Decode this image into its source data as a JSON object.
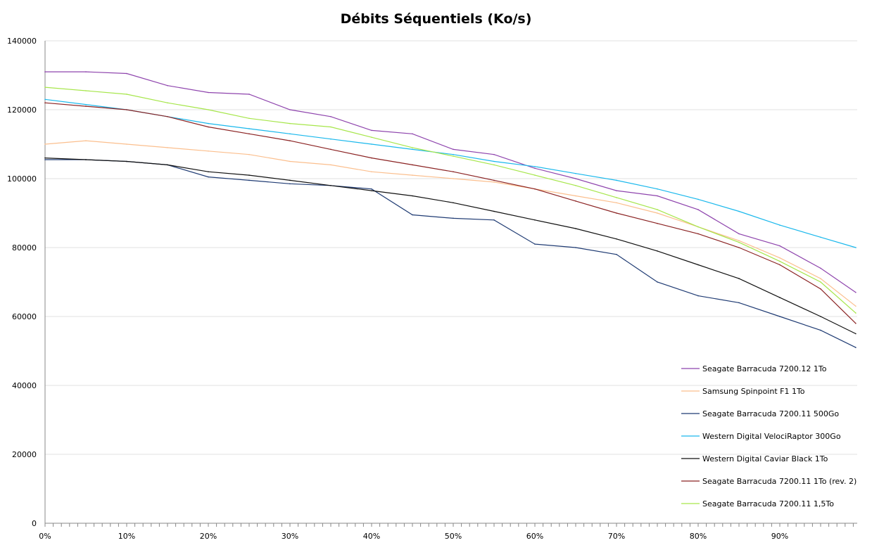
{
  "chart_data": {
    "type": "line",
    "title": "Débits Séquentiels (Ko/s)",
    "xlabel": "",
    "ylabel": "",
    "xlim": [
      0,
      100
    ],
    "ylim": [
      0,
      140000
    ],
    "x_tick_labels": [
      "0%",
      "10%",
      "20%",
      "30%",
      "40%",
      "50%",
      "60%",
      "70%",
      "80%",
      "90%"
    ],
    "y_tick_labels": [
      "0",
      "20000",
      "40000",
      "60000",
      "80000",
      "100000",
      "120000",
      "140000"
    ],
    "grid": "horizontal",
    "legend": "bottom-right",
    "x": [
      0,
      5,
      10,
      15,
      20,
      25,
      30,
      35,
      40,
      45,
      50,
      55,
      60,
      65,
      70,
      75,
      80,
      85,
      90,
      95,
      100
    ],
    "series": [
      {
        "name": "Seagate Barracuda 7200.12 1To",
        "color": "#8e44ad",
        "values": [
          131000,
          131000,
          130500,
          127000,
          125000,
          124500,
          120000,
          118000,
          114000,
          113000,
          108500,
          107000,
          103000,
          100000,
          96500,
          95000,
          91000,
          84000,
          80500,
          74000,
          67000
        ]
      },
      {
        "name": "Samsung Spinpoint F1 1To",
        "color": "#fbbf8e",
        "values": [
          110000,
          111000,
          110000,
          109000,
          108000,
          107000,
          105000,
          104000,
          102000,
          101000,
          100000,
          99000,
          97000,
          95000,
          93000,
          90000,
          86000,
          82000,
          77000,
          71000,
          63000
        ]
      },
      {
        "name": "Seagate Barracuda 7200.11 500Go",
        "color": "#1f3b73",
        "values": [
          105500,
          105500,
          105000,
          104000,
          100500,
          99500,
          98500,
          98000,
          97000,
          89500,
          88500,
          88000,
          81000,
          80000,
          78000,
          70000,
          66000,
          64000,
          60000,
          56000,
          51000
        ]
      },
      {
        "name": "Western Digital VelociRaptor 300Go",
        "color": "#1ab8ec",
        "values": [
          123000,
          121500,
          120000,
          118000,
          116000,
          114500,
          113000,
          111500,
          110000,
          108500,
          107000,
          105000,
          103500,
          101500,
          99500,
          97000,
          94000,
          90500,
          86500,
          83000,
          80000
        ]
      },
      {
        "name": "Western Digital Caviar Black 1To",
        "color": "#111111",
        "values": [
          106000,
          105500,
          105000,
          104000,
          102000,
          101000,
          99500,
          98000,
          96500,
          95000,
          93000,
          90500,
          88000,
          85500,
          82500,
          79000,
          75000,
          71000,
          65500,
          60000,
          55000
        ]
      },
      {
        "name": "Seagate Barracuda 7200.11 1To (rev. 2)",
        "color": "#8b2323",
        "values": [
          122000,
          121000,
          120000,
          118000,
          115000,
          113000,
          111000,
          108500,
          106000,
          104000,
          102000,
          99500,
          97000,
          93500,
          90000,
          87000,
          84000,
          80000,
          75000,
          68000,
          58000
        ]
      },
      {
        "name": "Seagate Barracuda 7200.11 1,5To",
        "color": "#a6e64a",
        "values": [
          126500,
          125500,
          124500,
          122000,
          120000,
          117500,
          116000,
          115000,
          112000,
          109000,
          106500,
          104000,
          101000,
          98000,
          94500,
          91000,
          86000,
          81500,
          76000,
          70000,
          61000
        ]
      }
    ]
  }
}
